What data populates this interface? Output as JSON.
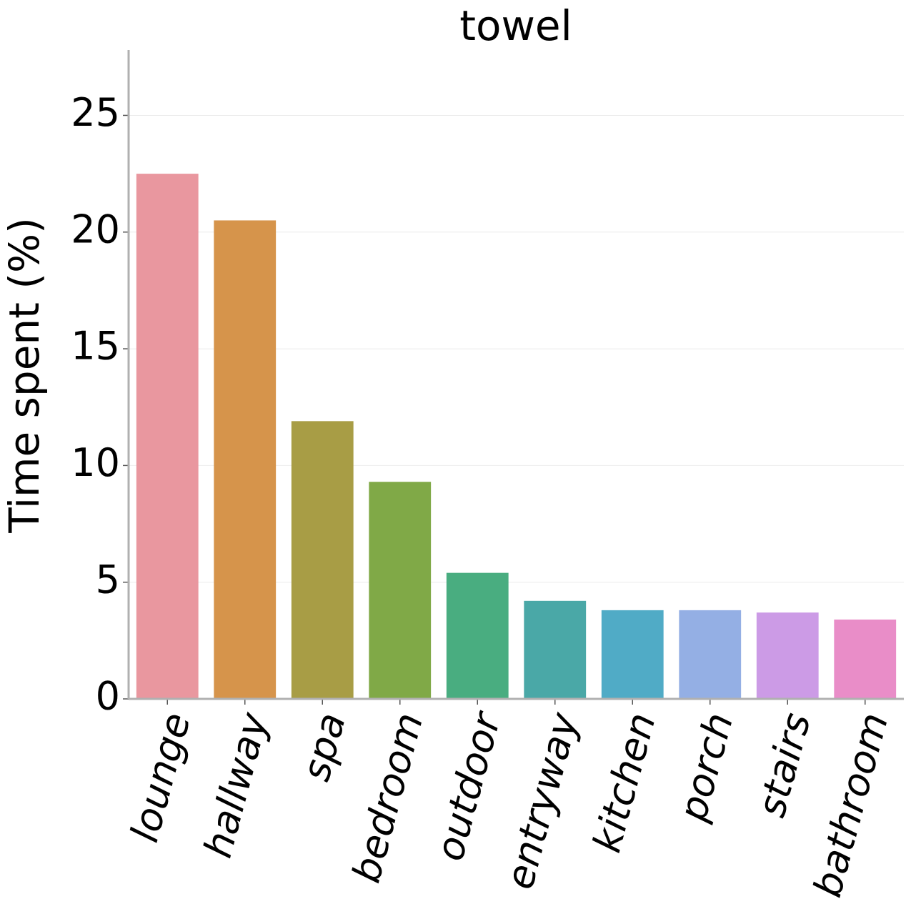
{
  "chart_data": {
    "type": "bar",
    "title": "towel",
    "y_label": "Time spent (%)",
    "categories": [
      "lounge",
      "hallway",
      "spa",
      "bedroom",
      "outdoor",
      "entryway",
      "kitchen",
      "porch",
      "stairs",
      "bathroom"
    ],
    "values": [
      22.5,
      20.5,
      11.9,
      9.3,
      5.4,
      4.2,
      3.8,
      3.8,
      3.7,
      3.4
    ],
    "colors": [
      "#e9979f",
      "#d6944b",
      "#a89d45",
      "#80a947",
      "#49ad80",
      "#4aa8a7",
      "#50abc6",
      "#94afe4",
      "#cc9be6",
      "#e98dc8"
    ],
    "ylim": [
      0,
      27.8
    ],
    "yticks": [
      0,
      5,
      10,
      15,
      20,
      25
    ],
    "grid": true
  }
}
